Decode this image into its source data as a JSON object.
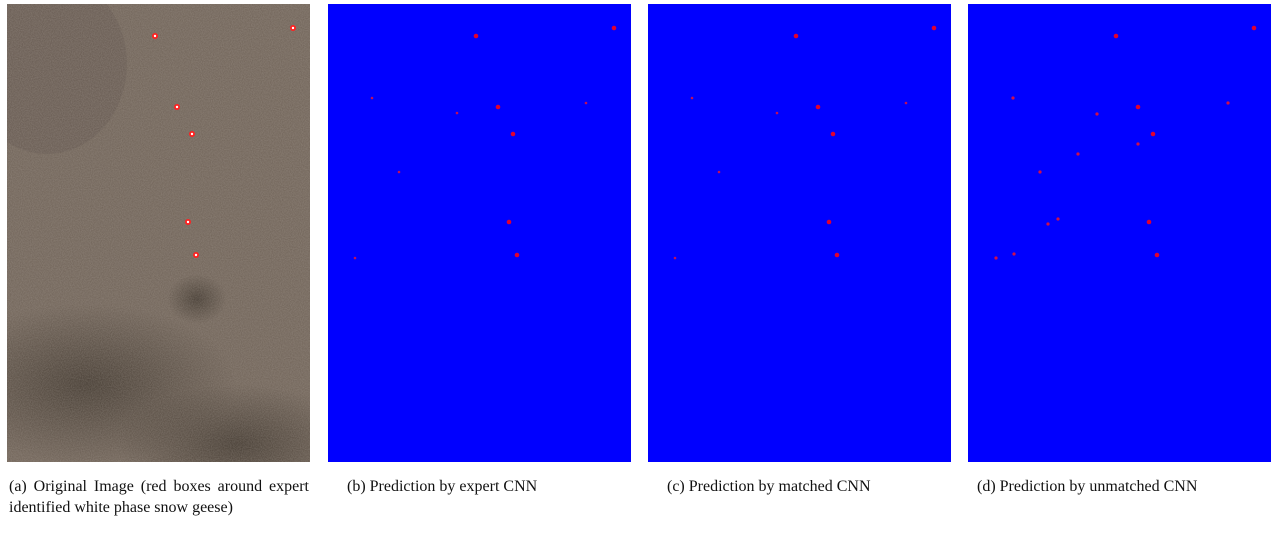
{
  "figure": {
    "panels": [
      {
        "caption": "(a) Original Image (red boxes around expert identified white phase snow geese)"
      },
      {
        "caption": "(b) Prediction by expert CNN"
      },
      {
        "caption": "(c) Prediction by matched CNN"
      },
      {
        "caption": "(d) Prediction by unmatched CNN"
      }
    ]
  }
}
